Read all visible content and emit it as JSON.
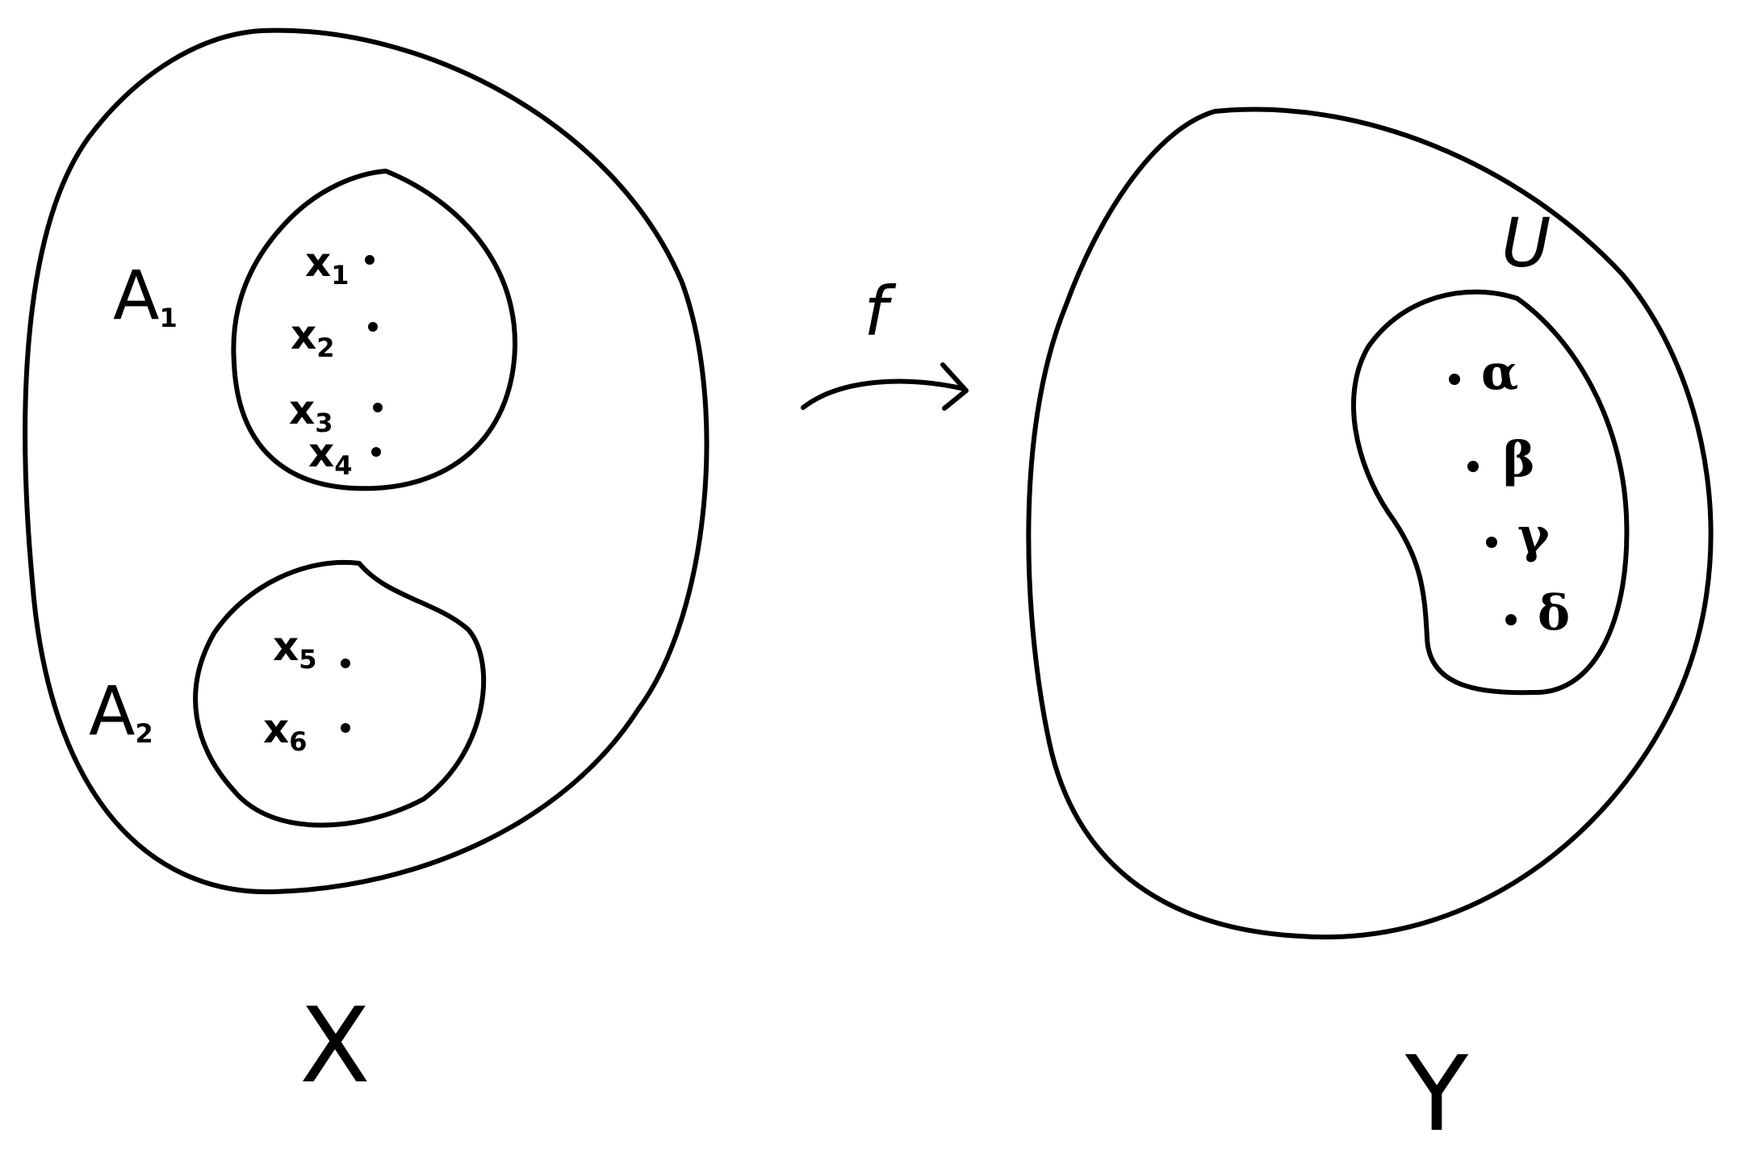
{
  "sets": {
    "X": {
      "label": "X",
      "subsets": {
        "A1": {
          "label": "A",
          "subscript": "1",
          "elements": [
            {
              "base": "x",
              "sub": "1"
            },
            {
              "base": "x",
              "sub": "2"
            },
            {
              "base": "x",
              "sub": "3"
            },
            {
              "base": "x",
              "sub": "4"
            }
          ]
        },
        "A2": {
          "label": "A",
          "subscript": "2",
          "elements": [
            {
              "base": "x",
              "sub": "5"
            },
            {
              "base": "x",
              "sub": "6"
            }
          ]
        }
      }
    },
    "Y": {
      "label": "Y",
      "subsets": {
        "U": {
          "label": "U",
          "elements": [
            {
              "label": "α"
            },
            {
              "label": "β"
            },
            {
              "label": "γ"
            },
            {
              "label": "δ"
            }
          ]
        }
      }
    }
  },
  "map": {
    "label": "f"
  }
}
